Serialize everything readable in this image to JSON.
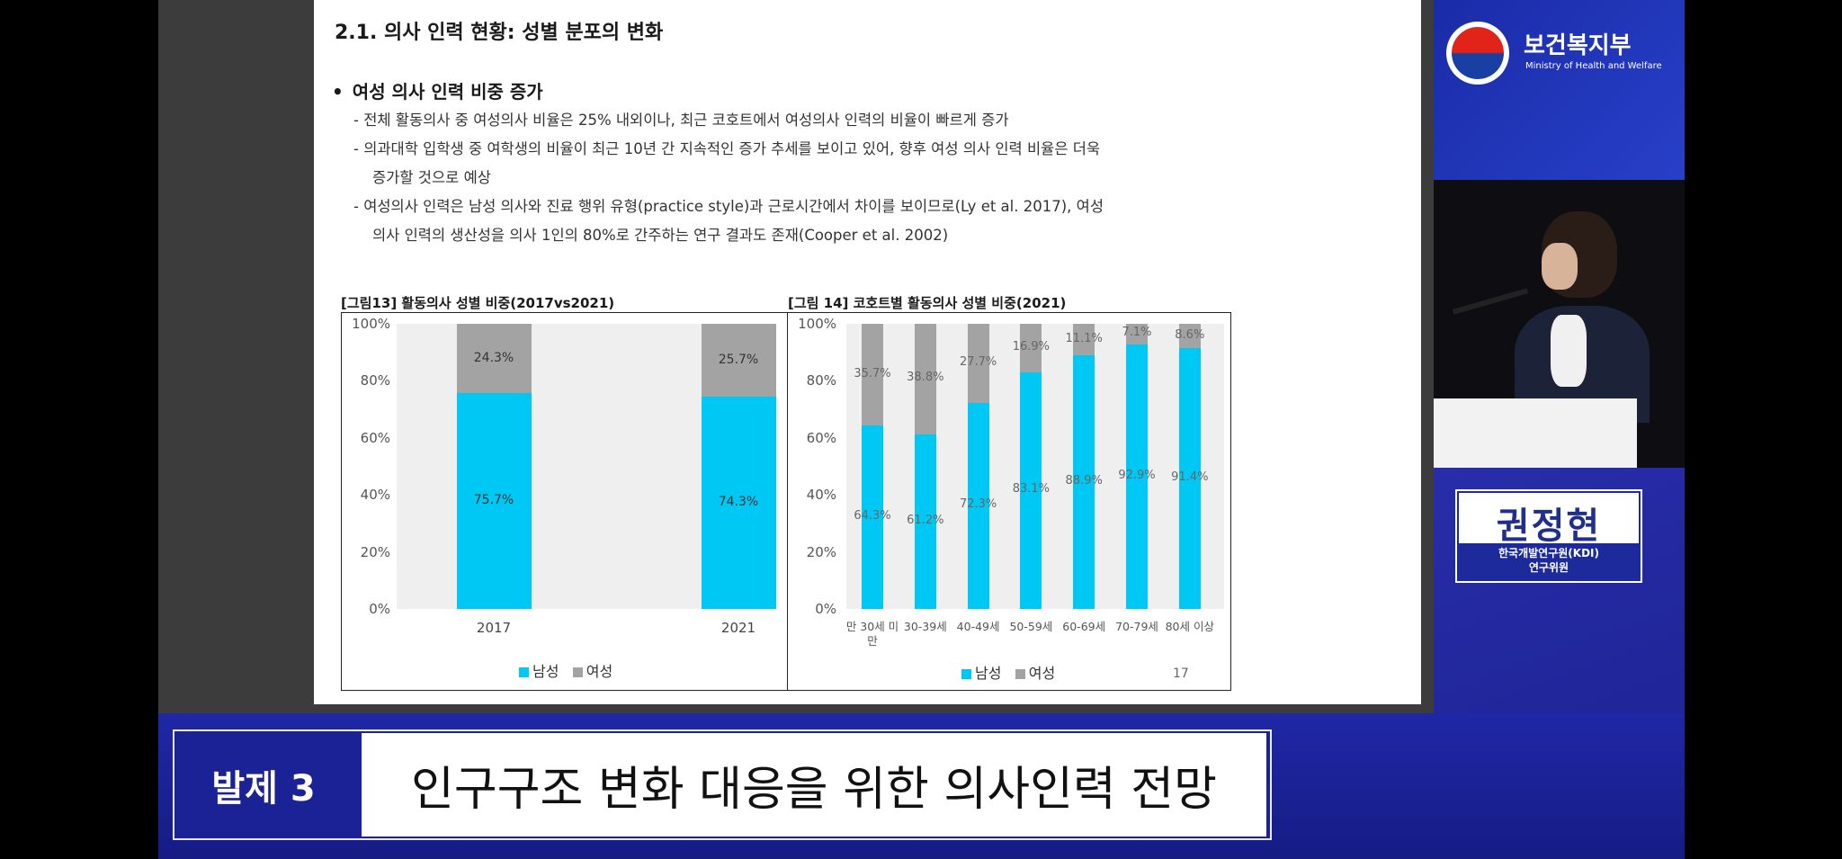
{
  "slide": {
    "title": "2.1. 의사 인력 현황:  성별 분포의 변화",
    "bullet": "여성 의사 인력 비중 증가",
    "lines": [
      "-  전체 활동의사 중 여성의사 비율은 25% 내외이나, 최근 코호트에서 여성의사 인력의 비율이 빠르게 증가",
      "-  의과대학 입학생 중 여학생의 비율이 최근 10년 간 지속적인 증가 추세를 보이고 있어, 향후 여성 의사 인력 비율은 더욱",
      "증가할 것으로 예상",
      "-  여성의사 인력은 남성 의사와 진료 행위 유형(practice style)과 근로시간에서 차이를 보이므로(Ly et al. 2017), 여성",
      "의사 인력의 생산성을 의사 1인의 80%로 간주하는 연구 결과도 존재(Cooper et al. 2002)"
    ],
    "page_number": "17"
  },
  "chart_data": [
    {
      "type": "bar",
      "stacked": true,
      "title": "[그림13] 활동의사 성별 비중(2017vs2021)",
      "categories": [
        "2017",
        "2021"
      ],
      "series": [
        {
          "name": "남성",
          "values": [
            75.7,
            74.3
          ],
          "labels": [
            "75.7%",
            "74.3%"
          ],
          "color": "#00c8f5"
        },
        {
          "name": "여성",
          "values": [
            24.3,
            25.7
          ],
          "labels": [
            "24.3%",
            "25.7%"
          ],
          "color": "#a3a3a3"
        }
      ],
      "yticks": [
        "100%",
        "80%",
        "60%",
        "40%",
        "20%",
        "0%"
      ],
      "ylim": [
        0,
        100
      ],
      "legend": "bottom"
    },
    {
      "type": "bar",
      "stacked": true,
      "title": "[그림 14] 코호트별 활동의사  성별 비중(2021)",
      "categories": [
        "만 30세 미만",
        "30-39세",
        "40-49세",
        "50-59세",
        "60-69세",
        "70-79세",
        "80세 이상"
      ],
      "series": [
        {
          "name": "남성",
          "values": [
            64.3,
            61.2,
            72.3,
            83.1,
            88.9,
            92.9,
            91.4
          ],
          "labels": [
            "64.3%",
            "61.2%",
            "72.3%",
            "83.1%",
            "88.9%",
            "92.9%",
            "91.4%"
          ],
          "color": "#00c8f5"
        },
        {
          "name": "여성",
          "values": [
            35.7,
            38.8,
            27.7,
            16.9,
            11.1,
            7.1,
            8.6
          ],
          "labels": [
            "35.7%",
            "38.8%",
            "27.7%",
            "16.9%",
            "11.1%",
            "7.1%",
            "8.6%"
          ],
          "color": "#a3a3a3"
        }
      ],
      "yticks": [
        "100%",
        "80%",
        "60%",
        "40%",
        "20%",
        "0%"
      ],
      "ylim": [
        0,
        100
      ],
      "legend": "bottom"
    }
  ],
  "ministry": {
    "name": "보건복지부",
    "name_en": "Ministry of Health and Welfare"
  },
  "speaker": {
    "name": "권정현",
    "affiliation": "한국개발연구원(KDI)",
    "role": "연구위원"
  },
  "banner": {
    "session": "발제 3",
    "topic": "인구구조 변화 대응을 위한 의사인력 전망"
  },
  "colors": {
    "male": "#00c8f5",
    "female": "#a3a3a3",
    "banner_bg": "#1f27a6"
  }
}
